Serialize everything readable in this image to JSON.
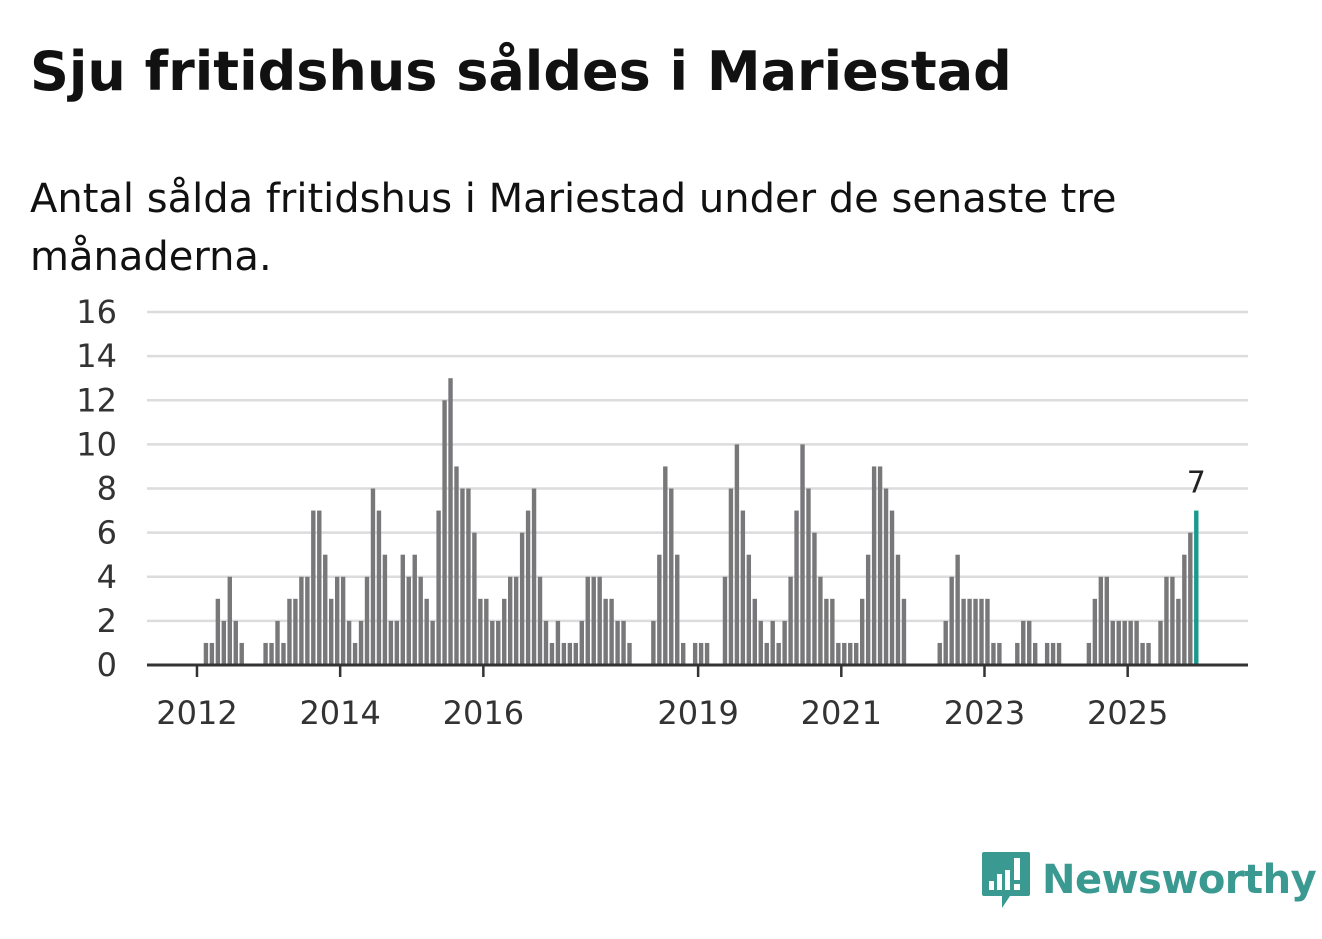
{
  "header": {
    "title": "Sju fritidshus såldes i Mariestad",
    "subtitle": "Antal sålda fritidshus i Mariestad under de senaste tre månaderna."
  },
  "brand": {
    "name": "Newsworthy",
    "color": "#3a9990"
  },
  "chart_data": {
    "type": "bar",
    "title": "Sju fritidshus såldes i Mariestad",
    "subtitle": "Antal sålda fritidshus i Mariestad under de senaste tre månaderna.",
    "xlabel": "",
    "ylabel": "",
    "ylim": [
      0,
      16
    ],
    "yticks": [
      "0",
      "2",
      "4",
      "6",
      "8",
      "10",
      "12",
      "14",
      "16"
    ],
    "grid": true,
    "start": "2011-03",
    "frequency": "monthly",
    "xticks": [
      {
        "label": "2012",
        "index": 10
      },
      {
        "label": "2014",
        "index": 34
      },
      {
        "label": "2016",
        "index": 58
      },
      {
        "label": "2019",
        "index": 94
      },
      {
        "label": "2021",
        "index": 118
      },
      {
        "label": "2023",
        "index": 142
      },
      {
        "label": "2025",
        "index": 166
      }
    ],
    "values": [
      0,
      0,
      0,
      0,
      0,
      0,
      0,
      0,
      0,
      0,
      0,
      1,
      1,
      3,
      2,
      4,
      2,
      1,
      0,
      0,
      0,
      1,
      1,
      2,
      1,
      3,
      3,
      4,
      4,
      7,
      7,
      5,
      3,
      4,
      4,
      2,
      1,
      2,
      4,
      8,
      7,
      5,
      2,
      2,
      5,
      4,
      5,
      4,
      3,
      2,
      7,
      12,
      13,
      9,
      8,
      8,
      6,
      3,
      3,
      2,
      2,
      3,
      4,
      4,
      6,
      7,
      8,
      4,
      2,
      1,
      2,
      1,
      1,
      1,
      2,
      4,
      4,
      4,
      3,
      3,
      2,
      2,
      1,
      0,
      0,
      0,
      2,
      5,
      9,
      8,
      5,
      1,
      0,
      1,
      1,
      1,
      0,
      0,
      4,
      8,
      10,
      7,
      5,
      3,
      2,
      1,
      2,
      1,
      2,
      4,
      7,
      10,
      8,
      6,
      4,
      3,
      3,
      1,
      1,
      1,
      1,
      3,
      5,
      9,
      9,
      8,
      7,
      5,
      3,
      0,
      0,
      0,
      0,
      0,
      1,
      2,
      4,
      5,
      3,
      3,
      3,
      3,
      3,
      1,
      1,
      0,
      0,
      1,
      2,
      2,
      1,
      0,
      1,
      1,
      1,
      0,
      0,
      0,
      0,
      1,
      3,
      4,
      4,
      2,
      2,
      2,
      2,
      2,
      1,
      1,
      0,
      2,
      4,
      4,
      3,
      5,
      6,
      7
    ],
    "bar_color": "#78787a",
    "highlight_color": "#1a9a8e",
    "highlight_label": "7"
  }
}
